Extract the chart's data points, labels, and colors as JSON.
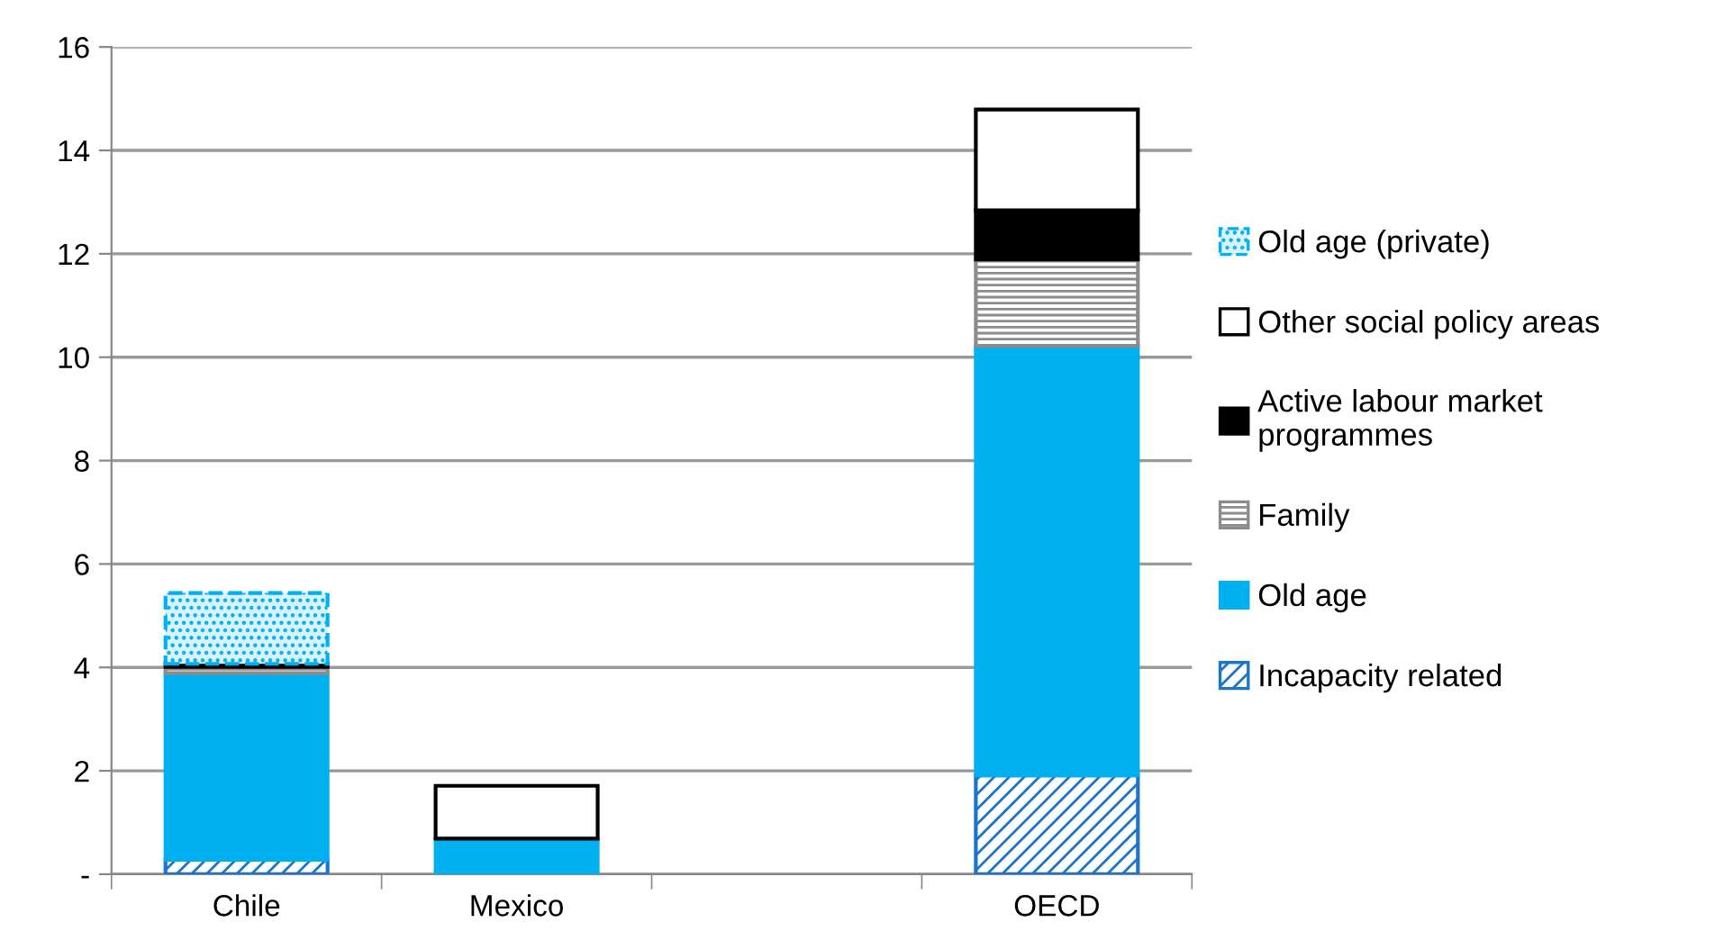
{
  "chart_data": {
    "type": "bar",
    "stacked": true,
    "categories": [
      "Chile",
      "Mexico",
      null,
      "OECD"
    ],
    "series": [
      {
        "name": "Incapacity related",
        "color": "#1b75c9",
        "values": [
          0.28,
          0,
          null,
          1.91
        ]
      },
      {
        "name": "Old age",
        "color": "#00b0f0",
        "values": [
          3.61,
          0.69,
          null,
          8.31
        ]
      },
      {
        "name": "Family",
        "color": "#8c8c8c",
        "values": [
          0.12,
          0,
          null,
          1.67
        ]
      },
      {
        "name": "Active labour market\nprogrammes",
        "color": "#000000",
        "values": [
          0.06,
          0,
          null,
          0.95
        ]
      },
      {
        "name": "Other social policy areas",
        "color": "#ffffff",
        "values": [
          0,
          1.02,
          null,
          1.95
        ]
      },
      {
        "name": "Old age (private)",
        "color": "#00b0f0",
        "values": [
          1.37,
          0,
          null,
          0
        ]
      }
    ],
    "ylim": [
      0,
      16
    ],
    "yticks": [
      {
        "value": 0,
        "label": "-"
      },
      2,
      4,
      6,
      8,
      10,
      12,
      14,
      16
    ],
    "grid": "y",
    "legend": "right"
  }
}
